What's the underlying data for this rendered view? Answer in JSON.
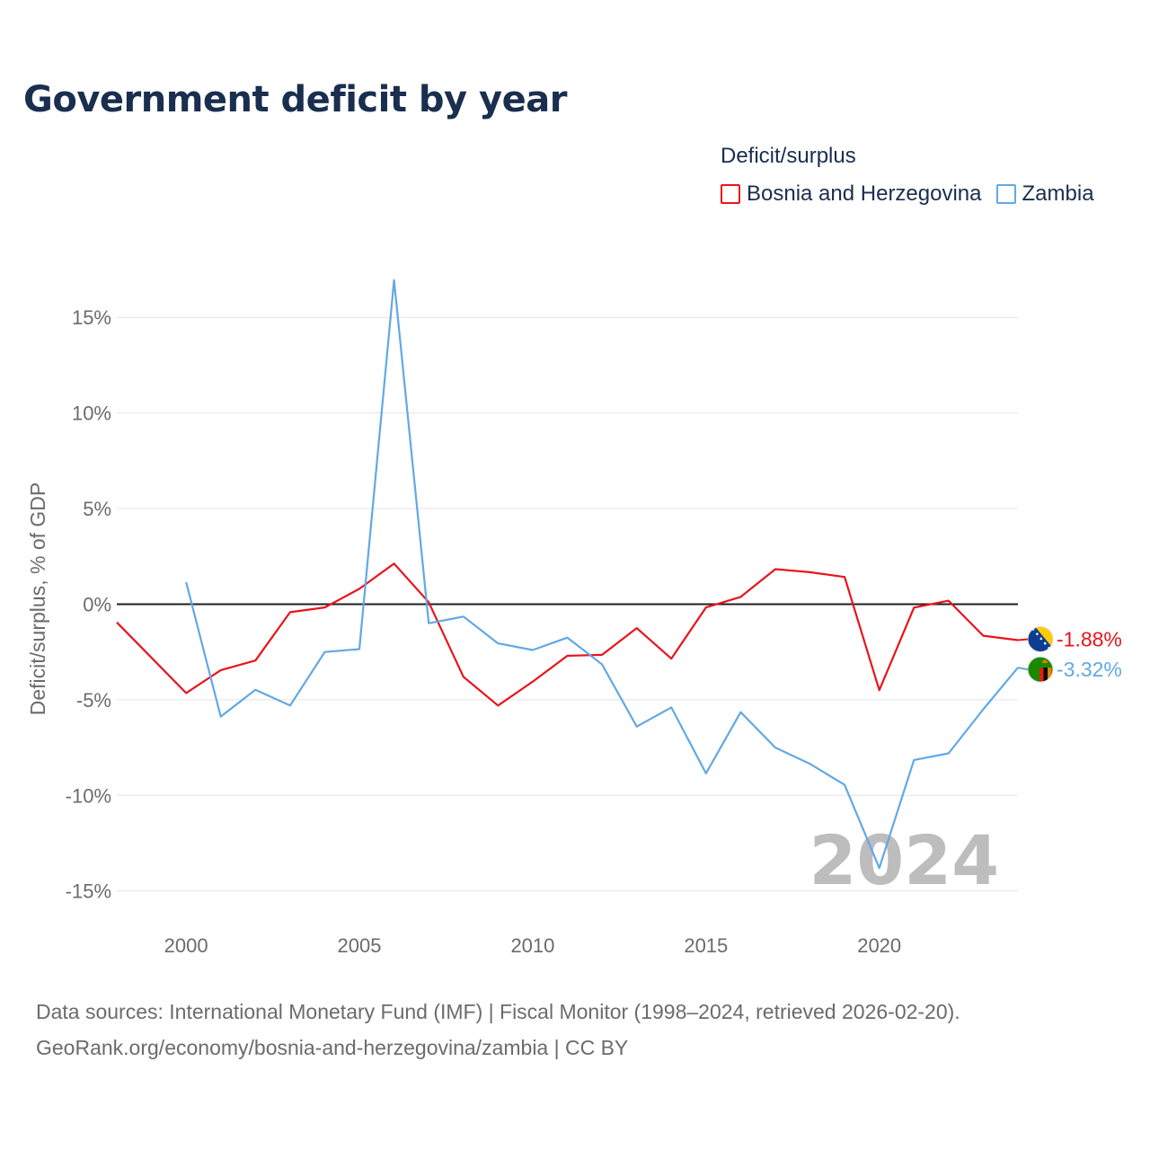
{
  "title": "Government deficit by year",
  "legend": {
    "title": "Deficit/surplus",
    "items": [
      {
        "label": "Bosnia and Herzegovina",
        "color": "#e8141c"
      },
      {
        "label": "Zambia",
        "color": "#62a8e5"
      }
    ]
  },
  "chart_data": {
    "type": "line",
    "title": "Government deficit by year",
    "ylabel": "Deficit/surplus, % of GDP",
    "xlabel": "",
    "xlim": [
      1998,
      2024
    ],
    "ylim": [
      -16,
      17.5
    ],
    "x_ticks": [
      2000,
      2005,
      2010,
      2015,
      2020
    ],
    "x_tick_labels": [
      "2000",
      "2005",
      "2010",
      "2015",
      "2020"
    ],
    "y_ticks": [
      15,
      10,
      5,
      0,
      -5,
      -10,
      -15
    ],
    "y_tick_labels": [
      "15%",
      "10%",
      "5%",
      "0%",
      "-5%",
      "-10%",
      "-15%"
    ],
    "watermark_year": "2024",
    "series": [
      {
        "name": "Bosnia and Herzegovina",
        "color": "#e8141c",
        "end_label": "-1.88%",
        "flag_icon": "bosnia-flag-icon",
        "x": [
          1998,
          2000,
          2001,
          2002,
          2003,
          2004,
          2005,
          2006,
          2007,
          2008,
          2009,
          2010,
          2011,
          2012,
          2013,
          2014,
          2015,
          2016,
          2017,
          2018,
          2019,
          2020,
          2021,
          2022,
          2023,
          2024
        ],
        "values": [
          -0.95,
          -4.65,
          -3.45,
          -2.95,
          -0.42,
          -0.17,
          0.8,
          2.12,
          0.1,
          -3.8,
          -5.3,
          -4.05,
          -2.7,
          -2.65,
          -1.25,
          -2.85,
          -0.17,
          0.38,
          1.83,
          1.67,
          1.42,
          -4.5,
          -0.18,
          0.18,
          -1.65,
          -1.88
        ]
      },
      {
        "name": "Zambia",
        "color": "#62a8e5",
        "end_label": "-3.32%",
        "flag_icon": "zambia-flag-icon",
        "x": [
          2000,
          2001,
          2002,
          2003,
          2004,
          2005,
          2006,
          2007,
          2008,
          2009,
          2010,
          2011,
          2012,
          2013,
          2014,
          2015,
          2016,
          2017,
          2018,
          2019,
          2020,
          2021,
          2022,
          2023,
          2024
        ],
        "values": [
          1.15,
          -5.88,
          -4.48,
          -5.3,
          -2.5,
          -2.35,
          16.95,
          -1.0,
          -0.65,
          -2.05,
          -2.4,
          -1.75,
          -3.15,
          -6.4,
          -5.4,
          -8.85,
          -5.65,
          -7.5,
          -8.35,
          -9.45,
          -13.8,
          -8.15,
          -7.8,
          -5.5,
          -3.32
        ]
      }
    ]
  },
  "source": {
    "line1": "Data sources: International Monetary Fund (IMF) | Fiscal Monitor (1998–2024, retrieved 2026-02-20).",
    "line2": "GeoRank.org/economy/bosnia-and-herzegovina/zambia | CC BY"
  }
}
